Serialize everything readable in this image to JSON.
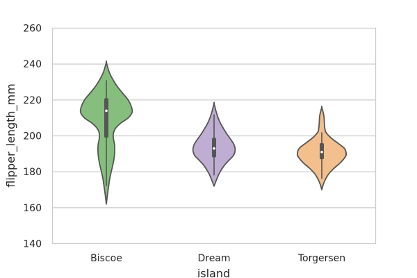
{
  "chart_data": {
    "type": "violin",
    "xlabel": "island",
    "ylabel": "flipper_length_mm",
    "ylim": [
      140,
      260
    ],
    "yticks": [
      140,
      160,
      180,
      200,
      220,
      240,
      260
    ],
    "grid": true,
    "categories": [
      "Biscoe",
      "Dream",
      "Torgersen"
    ],
    "colors": [
      "#86bf7d",
      "#bfadd3",
      "#f2bf8d"
    ],
    "outline_color": "#555555",
    "violins": [
      {
        "category": "Biscoe",
        "min": 162,
        "max": 241,
        "q1": 199,
        "median": 214,
        "q3": 221,
        "whisker_low": 172,
        "whisker_high": 231,
        "profile": [
          [
            162,
            0.0
          ],
          [
            168,
            0.05
          ],
          [
            172,
            0.09
          ],
          [
            176,
            0.13
          ],
          [
            180,
            0.19
          ],
          [
            185,
            0.27
          ],
          [
            190,
            0.32
          ],
          [
            195,
            0.32
          ],
          [
            198,
            0.28
          ],
          [
            201,
            0.27
          ],
          [
            204,
            0.35
          ],
          [
            207,
            0.55
          ],
          [
            210,
            0.85
          ],
          [
            213,
            1.0
          ],
          [
            216,
            0.98
          ],
          [
            220,
            0.85
          ],
          [
            224,
            0.62
          ],
          [
            228,
            0.4
          ],
          [
            232,
            0.23
          ],
          [
            236,
            0.1
          ],
          [
            241,
            0.0
          ]
        ]
      },
      {
        "category": "Dream",
        "min": 172,
        "max": 218,
        "q1": 188,
        "median": 193,
        "q3": 199,
        "whisker_low": 178,
        "whisker_high": 212,
        "profile": [
          [
            172,
            0.0
          ],
          [
            175,
            0.08
          ],
          [
            179,
            0.2
          ],
          [
            183,
            0.37
          ],
          [
            186,
            0.55
          ],
          [
            189,
            0.75
          ],
          [
            192,
            0.82
          ],
          [
            195,
            0.78
          ],
          [
            198,
            0.65
          ],
          [
            201,
            0.5
          ],
          [
            204,
            0.37
          ],
          [
            207,
            0.25
          ],
          [
            210,
            0.16
          ],
          [
            213,
            0.09
          ],
          [
            218,
            0.0
          ]
        ]
      },
      {
        "category": "Torgersen",
        "min": 170,
        "max": 216,
        "q1": 187,
        "median": 191,
        "q3": 196,
        "whisker_low": 176,
        "whisker_high": 202,
        "profile": [
          [
            170,
            0.0
          ],
          [
            173,
            0.06
          ],
          [
            176,
            0.15
          ],
          [
            179,
            0.28
          ],
          [
            182,
            0.48
          ],
          [
            185,
            0.72
          ],
          [
            188,
            0.9
          ],
          [
            190,
            0.95
          ],
          [
            193,
            0.88
          ],
          [
            196,
            0.62
          ],
          [
            199,
            0.35
          ],
          [
            202,
            0.16
          ],
          [
            204,
            0.12
          ],
          [
            207,
            0.1
          ],
          [
            210,
            0.09
          ],
          [
            212,
            0.07
          ],
          [
            216,
            0.0
          ]
        ]
      }
    ]
  }
}
